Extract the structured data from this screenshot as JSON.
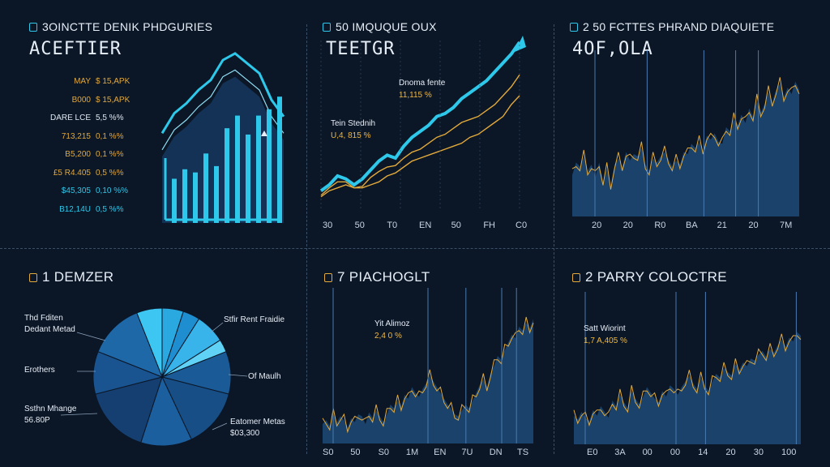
{
  "colors": {
    "cyan": "#2ec8ea",
    "gold": "#e2a93b",
    "navy": "#1d4a78",
    "bg": "#0b1626"
  },
  "panels": [
    {
      "title": "3OINCTTE DENIK PHDGURIES",
      "subtitle": "ACEFTIER",
      "icon": "document-icon",
      "list": [
        {
          "label": "MAY",
          "value": "$ 15,APK",
          "color": "gold"
        },
        {
          "label": "B000",
          "value": "$ 15,APK",
          "color": "gold"
        },
        {
          "label": "DARE LCE",
          "value": "5,5 %%",
          "color": "white"
        },
        {
          "label": "713,215",
          "value": "0,1 %%",
          "color": "gold"
        },
        {
          "label": "B5,200",
          "value": "0,1 %%",
          "color": "gold"
        },
        {
          "label": "£5 R4.405",
          "value": "0,5 %%",
          "color": "gold"
        },
        {
          "label": "$45,305",
          "value": "0,10 %%",
          "color": "cyan"
        },
        {
          "label": "B12,14U",
          "value": "0,5 %%",
          "color": "cyan"
        }
      ]
    },
    {
      "title": "50 IMQUQUE OUX",
      "subtitle": "TEETGR",
      "icon": "document-icon",
      "annotations": [
        {
          "label": "Dnoma fente",
          "value": "11,115 %"
        },
        {
          "label": "Tein Stednih",
          "value": "U,4, 815 %"
        }
      ],
      "x_ticks": [
        "30",
        "50",
        "T0",
        "EN",
        "50",
        "FH",
        "C0"
      ]
    },
    {
      "title": "2 50 FCTTES PHRAND DIAQUIETE",
      "subtitle": "4OF,OLA",
      "icon": "document-icon",
      "x_ticks": [
        "20",
        "20",
        "R0",
        "BA",
        "21",
        "20",
        "7M"
      ]
    },
    {
      "title": "1 DEMZER",
      "icon": "circle-icon",
      "pie_labels": [
        {
          "text": "Thd Fditen\nDedant Metad"
        },
        {
          "text": "Erothers"
        },
        {
          "text": "Ssthn Mhange\n56.80P"
        },
        {
          "text": "Stfir Rent Fraidie"
        },
        {
          "text": "Of Maulh"
        },
        {
          "text": "Eatomer Metas\n$03,300"
        }
      ]
    },
    {
      "title": "7 PIACHOGLT",
      "icon": "circle-icon",
      "annotations": [
        {
          "label": "Yit Alimoz",
          "value": "2,4 0 %"
        }
      ],
      "x_ticks": [
        "S0",
        "50",
        "S0",
        "1M",
        "EN",
        "7U",
        "DN",
        "TS"
      ]
    },
    {
      "title": "2 PARRY COLOCTRE",
      "icon": "circle-icon",
      "annotations": [
        {
          "label": "Satt Wiorint",
          "value": "1,7 A,405 %"
        }
      ],
      "x_ticks": [
        "E0",
        "3A",
        "00",
        "00",
        "14",
        "20",
        "30",
        "100"
      ]
    }
  ],
  "chart_data": [
    {
      "type": "bar",
      "series": [
        {
          "name": "",
          "values": [
            14,
            17,
            16,
            22,
            18,
            30,
            34,
            28,
            34,
            36,
            40
          ]
        }
      ],
      "overlay_line": [
        40,
        52,
        58,
        66,
        72,
        84,
        88,
        82,
        76,
        60,
        50
      ],
      "ylim": [
        0,
        100
      ]
    },
    {
      "type": "line",
      "x": [
        0,
        1,
        2,
        3,
        4,
        5,
        6,
        7,
        8,
        9,
        10,
        11,
        12,
        13,
        14,
        15,
        16,
        17,
        18,
        19,
        20,
        21,
        22,
        23,
        24
      ],
      "series": [
        {
          "name": "",
          "values": [
            8,
            12,
            18,
            16,
            12,
            16,
            22,
            28,
            32,
            30,
            38,
            44,
            48,
            52,
            58,
            60,
            64,
            70,
            74,
            78,
            82,
            88,
            94,
            100,
            108
          ]
        },
        {
          "name": "",
          "values": [
            5,
            10,
            14,
            14,
            10,
            11,
            17,
            21,
            24,
            25,
            30,
            34,
            36,
            40,
            44,
            46,
            50,
            54,
            56,
            58,
            62,
            66,
            72,
            78,
            86
          ]
        },
        {
          "name": "",
          "values": [
            4,
            8,
            10,
            12,
            10,
            10,
            12,
            14,
            18,
            20,
            24,
            28,
            30,
            32,
            34,
            36,
            38,
            40,
            44,
            46,
            50,
            54,
            58,
            66,
            72
          ]
        }
      ],
      "ylim": [
        0,
        120
      ]
    },
    {
      "type": "area",
      "values": [
        40,
        52,
        48,
        58,
        44,
        50,
        38,
        52,
        34,
        46,
        30,
        50,
        56,
        48,
        62,
        54,
        60,
        58,
        66,
        50,
        44,
        56,
        52,
        58,
        62,
        55,
        48,
        54,
        50,
        62,
        60,
        70,
        66,
        72,
        64,
        78,
        74,
        80,
        72,
        70,
        86,
        82,
        94,
        88,
        98,
        90,
        104,
        96,
        112,
        100,
        108,
        120,
        110,
        122,
        128,
        115,
        124,
        118,
        130,
        122
      ],
      "ylim": [
        0,
        160
      ]
    },
    {
      "type": "pie",
      "values": [
        6,
        5,
        4,
        7,
        3,
        10,
        14,
        12,
        16,
        10,
        13
      ]
    },
    {
      "type": "area",
      "values": [
        20,
        24,
        18,
        30,
        22,
        28,
        24,
        16,
        26,
        22,
        30,
        28,
        20,
        32,
        26,
        34,
        28,
        22,
        30,
        40,
        36,
        44,
        38,
        50,
        46,
        58,
        52,
        48,
        56,
        62,
        70,
        64,
        58,
        52,
        46,
        40,
        36,
        30,
        28,
        34,
        40,
        36,
        44,
        52,
        60,
        66,
        58,
        72,
        80,
        90,
        86,
        96,
        104,
        112,
        108,
        120,
        116,
        124,
        118,
        128
      ],
      "ylim": [
        0,
        160
      ]
    },
    {
      "type": "area",
      "values": [
        30,
        26,
        34,
        28,
        24,
        36,
        30,
        40,
        34,
        28,
        46,
        40,
        52,
        44,
        38,
        56,
        48,
        42,
        50,
        60,
        54,
        48,
        44,
        56,
        50,
        62,
        58,
        52,
        60,
        66,
        72,
        64,
        58,
        70,
        62,
        56,
        66,
        74,
        70,
        80,
        76,
        72,
        84,
        78,
        86,
        82,
        90,
        88,
        94,
        98,
        92,
        100,
        96,
        104,
        110,
        102,
        112,
        108,
        118,
        114
      ],
      "ylim": [
        0,
        160
      ]
    }
  ]
}
